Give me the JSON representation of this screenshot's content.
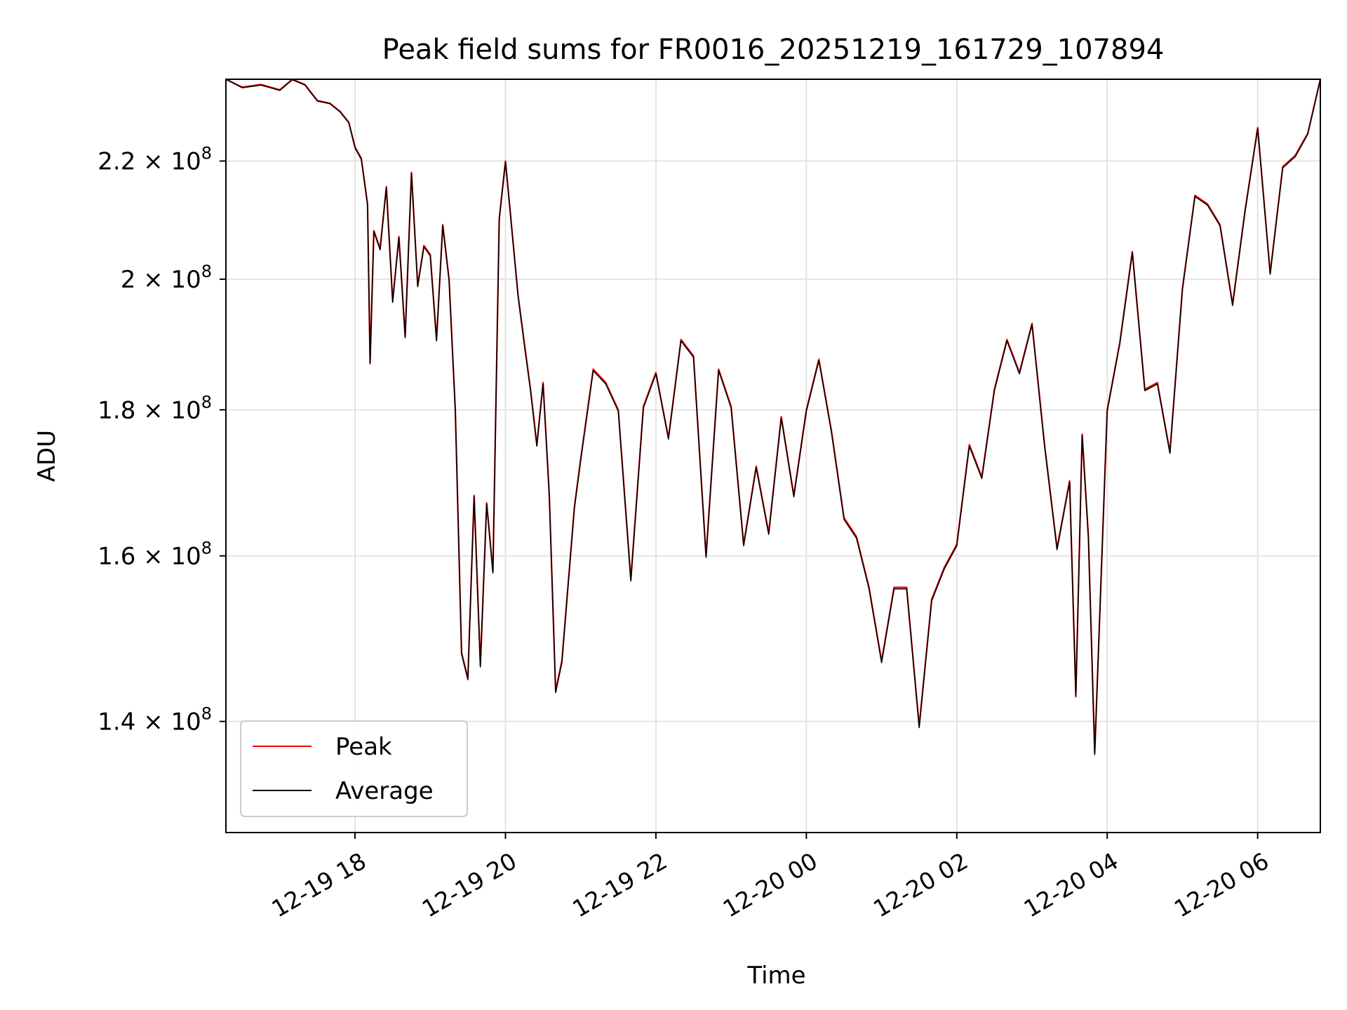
{
  "chart_data": {
    "type": "line",
    "title": "Peak field sums for FR0016_20251219_161729_107894",
    "xlabel": "Time",
    "ylabel": "ADU",
    "yscale": "log",
    "grid": true,
    "legend_position": "lower-left",
    "xlim": [
      "2025-12-19 16:17",
      "2025-12-20 06:50"
    ],
    "ylim": [
      128000000,
      235000000
    ],
    "x_ticks": [
      "12-19 18",
      "12-19 20",
      "12-19 22",
      "12-20 00",
      "12-20 02",
      "12-20 04",
      "12-20 06"
    ],
    "y_ticks": [
      {
        "value": 140000000,
        "mantissa": "1.4",
        "exponent": "8"
      },
      {
        "value": 160000000,
        "mantissa": "1.6",
        "exponent": "8"
      },
      {
        "value": 180000000,
        "mantissa": "1.8",
        "exponent": "8"
      },
      {
        "value": 200000000,
        "mantissa": "2",
        "exponent": "8"
      },
      {
        "value": 220000000,
        "mantissa": "2.2",
        "exponent": "8"
      }
    ],
    "x": [
      "2025-12-19 16:17",
      "2025-12-19 16:30",
      "2025-12-19 16:45",
      "2025-12-19 17:00",
      "2025-12-19 17:10",
      "2025-12-19 17:20",
      "2025-12-19 17:30",
      "2025-12-19 17:40",
      "2025-12-19 17:48",
      "2025-12-19 17:55",
      "2025-12-19 18:00",
      "2025-12-19 18:05",
      "2025-12-19 18:10",
      "2025-12-19 18:12",
      "2025-12-19 18:15",
      "2025-12-19 18:20",
      "2025-12-19 18:25",
      "2025-12-19 18:30",
      "2025-12-19 18:35",
      "2025-12-19 18:40",
      "2025-12-19 18:45",
      "2025-12-19 18:50",
      "2025-12-19 18:55",
      "2025-12-19 19:00",
      "2025-12-19 19:05",
      "2025-12-19 19:10",
      "2025-12-19 19:15",
      "2025-12-19 19:20",
      "2025-12-19 19:25",
      "2025-12-19 19:30",
      "2025-12-19 19:35",
      "2025-12-19 19:40",
      "2025-12-19 19:45",
      "2025-12-19 19:50",
      "2025-12-19 19:55",
      "2025-12-19 20:00",
      "2025-12-19 20:10",
      "2025-12-19 20:15",
      "2025-12-19 20:20",
      "2025-12-19 20:25",
      "2025-12-19 20:30",
      "2025-12-19 20:35",
      "2025-12-19 20:40",
      "2025-12-19 20:45",
      "2025-12-19 20:55",
      "2025-12-19 21:00",
      "2025-12-19 21:10",
      "2025-12-19 21:20",
      "2025-12-19 21:30",
      "2025-12-19 21:40",
      "2025-12-19 21:50",
      "2025-12-19 22:00",
      "2025-12-19 22:10",
      "2025-12-19 22:20",
      "2025-12-19 22:30",
      "2025-12-19 22:40",
      "2025-12-19 22:50",
      "2025-12-19 23:00",
      "2025-12-19 23:10",
      "2025-12-19 23:20",
      "2025-12-19 23:30",
      "2025-12-19 23:40",
      "2025-12-19 23:50",
      "2025-12-20 00:00",
      "2025-12-20 00:10",
      "2025-12-20 00:20",
      "2025-12-20 00:30",
      "2025-12-20 00:40",
      "2025-12-20 00:50",
      "2025-12-20 01:00",
      "2025-12-20 01:10",
      "2025-12-20 01:20",
      "2025-12-20 01:30",
      "2025-12-20 01:40",
      "2025-12-20 01:50",
      "2025-12-20 02:00",
      "2025-12-20 02:10",
      "2025-12-20 02:20",
      "2025-12-20 02:30",
      "2025-12-20 02:40",
      "2025-12-20 02:50",
      "2025-12-20 03:00",
      "2025-12-20 03:10",
      "2025-12-20 03:20",
      "2025-12-20 03:30",
      "2025-12-20 03:35",
      "2025-12-20 03:40",
      "2025-12-20 03:45",
      "2025-12-20 03:50",
      "2025-12-20 04:00",
      "2025-12-20 04:10",
      "2025-12-20 04:20",
      "2025-12-20 04:30",
      "2025-12-20 04:40",
      "2025-12-20 04:50",
      "2025-12-20 05:00",
      "2025-12-20 05:10",
      "2025-12-20 05:20",
      "2025-12-20 05:30",
      "2025-12-20 05:40",
      "2025-12-20 05:50",
      "2025-12-20 06:00",
      "2025-12-20 06:10",
      "2025-12-20 06:20",
      "2025-12-20 06:30",
      "2025-12-20 06:40",
      "2025-12-20 06:50"
    ],
    "series": [
      {
        "name": "Peak",
        "color": "#ff0000",
        "values": [
          235000000,
          233500000,
          234000000,
          233000000,
          235000000,
          234000000,
          231000000,
          230500000,
          229000000,
          227000000,
          222500000,
          220500000,
          212500000,
          187000000,
          208000000,
          205000000,
          215500000,
          196500000,
          207000000,
          191000000,
          218000000,
          199000000,
          205500000,
          204000000,
          190500000,
          209000000,
          200000000,
          180000000,
          148000000,
          145000000,
          168000000,
          146500000,
          167000000,
          158000000,
          210000000,
          220000000,
          197500000,
          190000000,
          183000000,
          175000000,
          184000000,
          168000000,
          143500000,
          147000000,
          166500000,
          173000000,
          186000000,
          184000000,
          180000000,
          157000000,
          180500000,
          185500000,
          176000000,
          190500000,
          188000000,
          160000000,
          186000000,
          180500000,
          161500000,
          172000000,
          163000000,
          179000000,
          168000000,
          180000000,
          187500000,
          177000000,
          165000000,
          162500000,
          156000000,
          147000000,
          156000000,
          156000000,
          139500000,
          154500000,
          158500000,
          161500000,
          175000000,
          170500000,
          183000000,
          190500000,
          185500000,
          193000000,
          175000000,
          161000000,
          170000000,
          143000000,
          176500000,
          162500000,
          136500000,
          180000000,
          190000000,
          204500000,
          183000000,
          184000000,
          174000000,
          198500000,
          214000000,
          212500000,
          209000000,
          196000000,
          211500000,
          226000000,
          201000000,
          219000000,
          221000000,
          225000000,
          235000000
        ]
      },
      {
        "name": "Average",
        "color": "#000000",
        "values": [
          235000000,
          233400000,
          233900000,
          232900000,
          234900000,
          233900000,
          230900000,
          230400000,
          228900000,
          226900000,
          222300000,
          220300000,
          212300000,
          186800000,
          207800000,
          204800000,
          215300000,
          196300000,
          206800000,
          190800000,
          217800000,
          198800000,
          205300000,
          203800000,
          190300000,
          208800000,
          199800000,
          179800000,
          147800000,
          144800000,
          167800000,
          146300000,
          166800000,
          157800000,
          209800000,
          219800000,
          197300000,
          189800000,
          182800000,
          174800000,
          183800000,
          167800000,
          143300000,
          146800000,
          166300000,
          172800000,
          185800000,
          183800000,
          179800000,
          156800000,
          180300000,
          185300000,
          175800000,
          190300000,
          187800000,
          159800000,
          185800000,
          180300000,
          161300000,
          171800000,
          162800000,
          178800000,
          167800000,
          179800000,
          187300000,
          176800000,
          164800000,
          162300000,
          155800000,
          146800000,
          155800000,
          155800000,
          139300000,
          154300000,
          158300000,
          161300000,
          174800000,
          170300000,
          182800000,
          190300000,
          185300000,
          192800000,
          174800000,
          160800000,
          169800000,
          142800000,
          176300000,
          162300000,
          136300000,
          179800000,
          189800000,
          204300000,
          182800000,
          183800000,
          173800000,
          198300000,
          213800000,
          212300000,
          208800000,
          195800000,
          211300000,
          225800000,
          200800000,
          218800000,
          220800000,
          224800000,
          235000000
        ]
      }
    ]
  }
}
